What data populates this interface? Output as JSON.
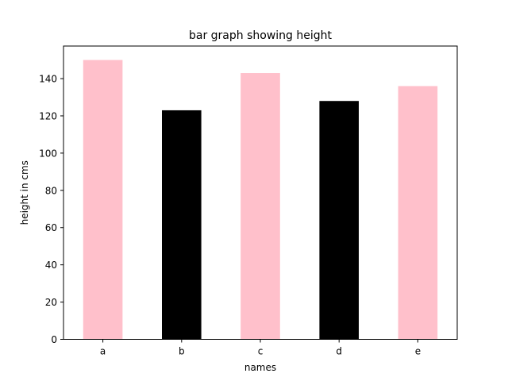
{
  "chart_data": {
    "type": "bar",
    "title": "bar graph showing height",
    "xlabel": "names",
    "ylabel": "height in cms",
    "categories": [
      "a",
      "b",
      "c",
      "d",
      "e"
    ],
    "values": [
      150,
      123,
      143,
      128,
      136
    ],
    "bar_colors": [
      "#ffc0cb",
      "#000000",
      "#ffc0cb",
      "#000000",
      "#ffc0cb"
    ],
    "ylim": [
      0,
      157.5
    ],
    "yticks": [
      0,
      20,
      40,
      60,
      80,
      100,
      120,
      140
    ],
    "grid": false,
    "legend": "none"
  }
}
